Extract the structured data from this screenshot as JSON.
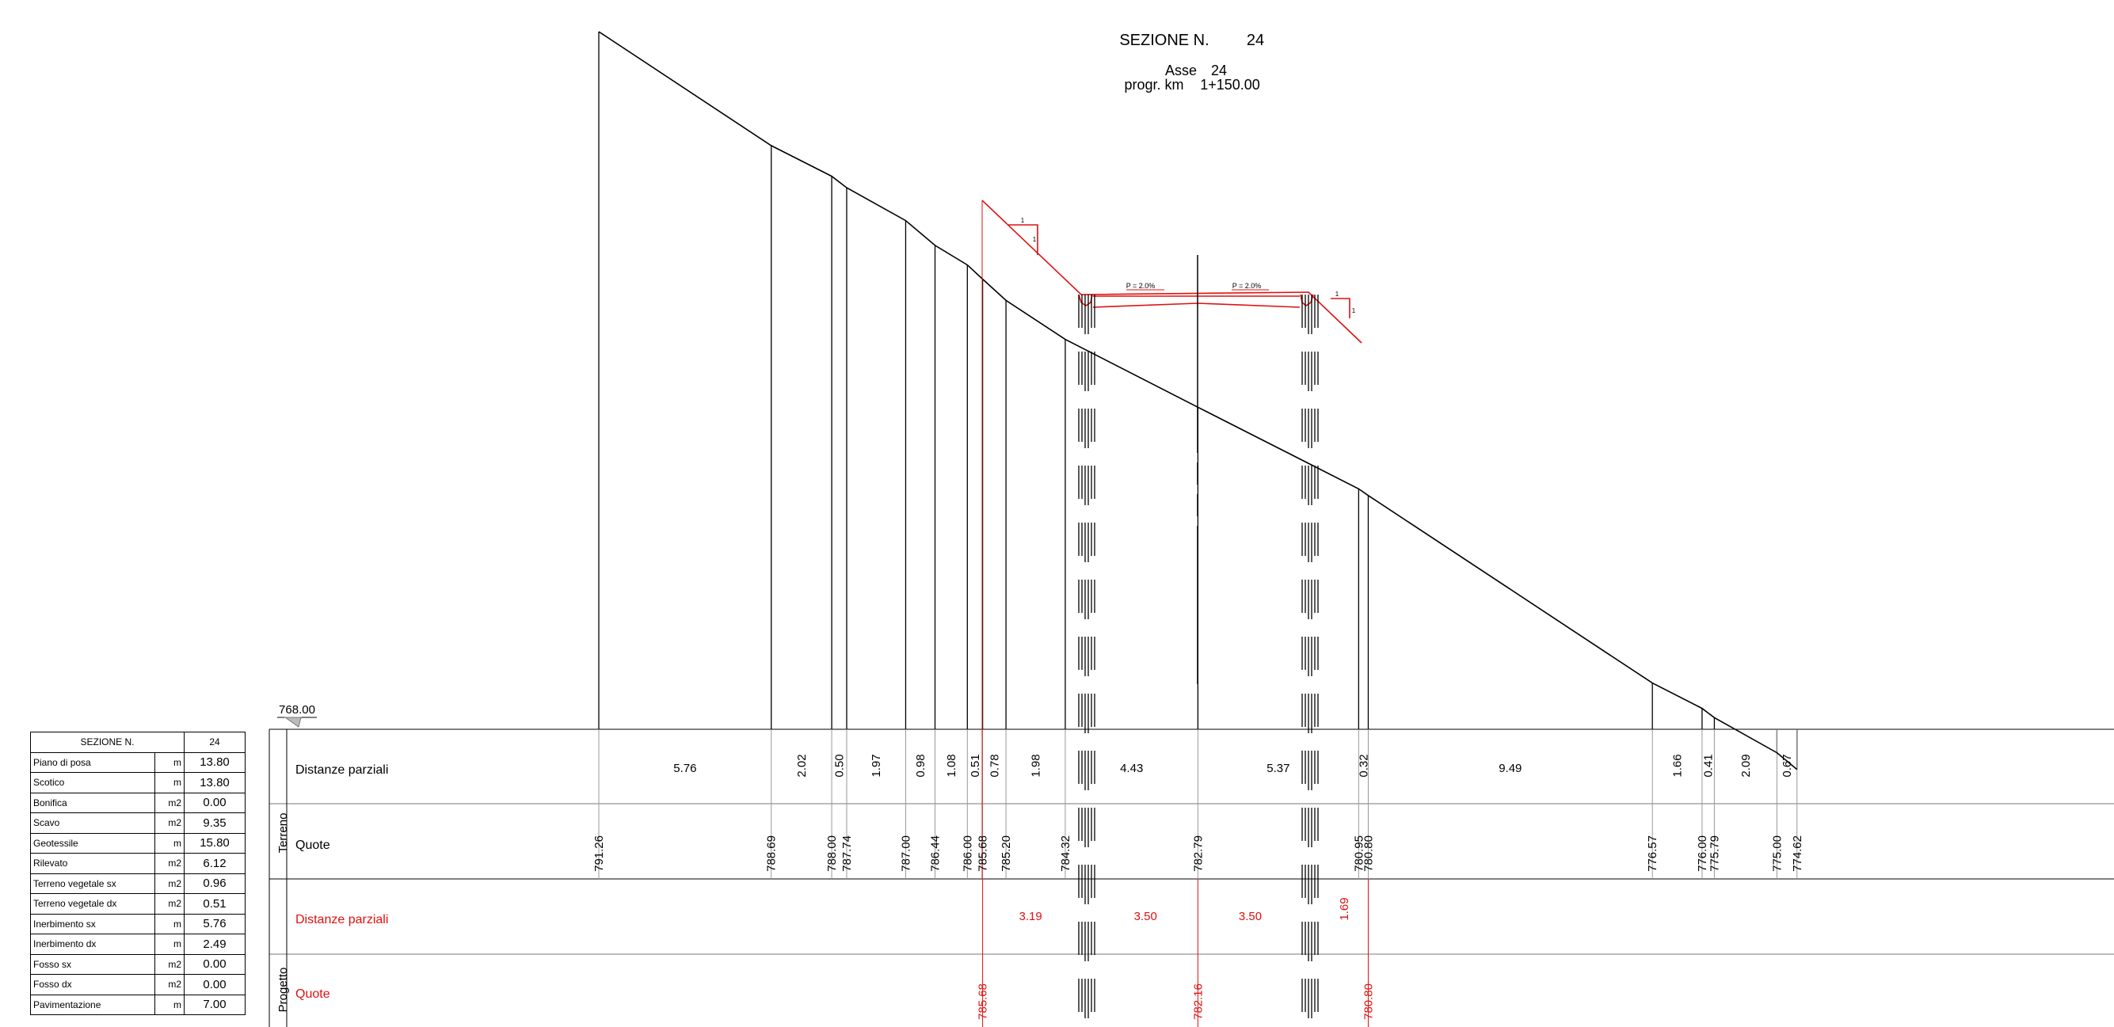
{
  "header": {
    "section_label": "SEZIONE N.",
    "section_number": "24",
    "axis_label": "Asse",
    "axis_number": "24",
    "progr_label": "progr. km",
    "progr_value": "1+150.00"
  },
  "datum": "768.00",
  "slope_labels": [
    "P = 2.0%",
    "P = 2.0%"
  ],
  "slope_ratio_labels": [
    "1",
    "1",
    "1",
    "1"
  ],
  "band_groups": {
    "terreno": "Terreno",
    "progetto": "Progetto"
  },
  "rows": {
    "terreno_dist_label": "Distanze parziali",
    "terreno_quote_label": "Quote",
    "progetto_dist_label": "Distanze parziali",
    "progetto_quote_label": "Quote"
  },
  "colors": {
    "design": "#e01010",
    "terrain": "#000000",
    "guide": "#999999"
  },
  "terrain_points": [
    {
      "d": 0.0,
      "z": 791.26,
      "zl": "791.26"
    },
    {
      "d": 5.76,
      "z": 788.69,
      "zl": "788.69"
    },
    {
      "d": 7.78,
      "z": 788.0,
      "zl": "788.00"
    },
    {
      "d": 8.28,
      "z": 787.74,
      "zl": "787.74"
    },
    {
      "d": 10.25,
      "z": 787.0,
      "zl": "787.00"
    },
    {
      "d": 11.23,
      "z": 786.44,
      "zl": "786.44"
    },
    {
      "d": 12.31,
      "z": 786.0,
      "zl": "786.00"
    },
    {
      "d": 12.82,
      "z": 785.68,
      "zl": "785.68"
    },
    {
      "d": 13.6,
      "z": 785.2,
      "zl": "785.20"
    },
    {
      "d": 15.58,
      "z": 784.32,
      "zl": "784.32"
    },
    {
      "d": 20.01,
      "z": 782.79,
      "zl": "782.79"
    },
    {
      "d": 25.38,
      "z": 780.95,
      "zl": "780.95"
    },
    {
      "d": 25.7,
      "z": 780.8,
      "zl": "780.80"
    },
    {
      "d": 35.19,
      "z": 776.57,
      "zl": "776.57"
    },
    {
      "d": 36.85,
      "z": 776.0,
      "zl": "776.00"
    },
    {
      "d": 37.26,
      "z": 775.79,
      "zl": "775.79"
    },
    {
      "d": 39.35,
      "z": 775.0,
      "zl": "775.00"
    },
    {
      "d": 40.02,
      "z": 774.62,
      "zl": "774.62"
    }
  ],
  "terrain_partials": [
    {
      "label": "5.76",
      "orient": "h"
    },
    {
      "label": "2.02",
      "orient": "v"
    },
    {
      "label": "0.50",
      "orient": "v"
    },
    {
      "label": "1.97",
      "orient": "v"
    },
    {
      "label": "0.98",
      "orient": "v"
    },
    {
      "label": "1.08",
      "orient": "v"
    },
    {
      "label": "0.51",
      "orient": "v"
    },
    {
      "label": "0.78",
      "orient": "v"
    },
    {
      "label": "1.98",
      "orient": "v"
    },
    {
      "label": "4.43",
      "orient": "h"
    },
    {
      "label": "5.37",
      "orient": "h"
    },
    {
      "label": "0.32",
      "orient": "v"
    },
    {
      "label": "9.49",
      "orient": "h"
    },
    {
      "label": "1.66",
      "orient": "v"
    },
    {
      "label": "0.41",
      "orient": "v"
    },
    {
      "label": "2.09",
      "orient": "v"
    },
    {
      "label": "0.67",
      "orient": "v"
    }
  ],
  "design_points": [
    {
      "d": 12.82,
      "z": 785.68,
      "zl": "785.68"
    },
    {
      "d": 20.01,
      "z": 782.16,
      "zl": "782.16"
    },
    {
      "d": 25.7,
      "z": 780.8,
      "zl": "780.80"
    }
  ],
  "design_partials": [
    {
      "label": "3.19",
      "d": 14.42,
      "orient": "h"
    },
    {
      "label": "3.50",
      "d": 18.26,
      "orient": "h"
    },
    {
      "label": "3.50",
      "d": 21.76,
      "orient": "h"
    },
    {
      "label": "1.69",
      "d": 24.9,
      "orient": "v"
    }
  ],
  "summary": {
    "header_label": "SEZIONE N.",
    "header_value": "24",
    "rows": [
      {
        "label": "Piano di posa",
        "unit": "m",
        "value": "13.80"
      },
      {
        "label": "Scotico",
        "unit": "m",
        "value": "13.80"
      },
      {
        "label": "Bonifica",
        "unit": "m2",
        "value": "0.00"
      },
      {
        "label": "Scavo",
        "unit": "m2",
        "value": "9.35"
      },
      {
        "label": "Geotessile",
        "unit": "m",
        "value": "15.80"
      },
      {
        "label": "Rilevato",
        "unit": "m2",
        "value": "6.12"
      },
      {
        "label": "Terreno vegetale sx",
        "unit": "m2",
        "value": "0.96"
      },
      {
        "label": "Terreno vegetale dx",
        "unit": "m2",
        "value": "0.51"
      },
      {
        "label": "Inerbimento sx",
        "unit": "m",
        "value": "5.76"
      },
      {
        "label": "Inerbimento dx",
        "unit": "m",
        "value": "2.49"
      },
      {
        "label": "Fosso sx",
        "unit": "m2",
        "value": "0.00"
      },
      {
        "label": "Fosso dx",
        "unit": "m2",
        "value": "0.00"
      },
      {
        "label": "Pavimentazione",
        "unit": "m",
        "value": "7.00"
      }
    ]
  }
}
